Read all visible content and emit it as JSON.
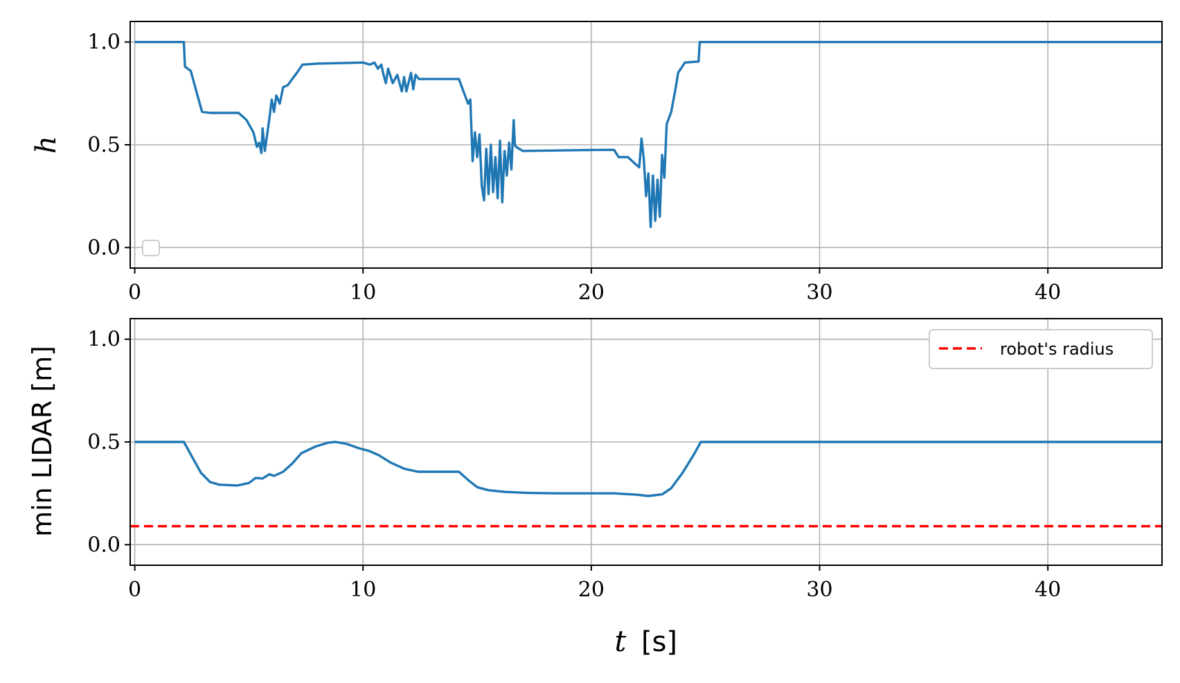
{
  "colors": {
    "series": "#1f77b4",
    "threshold": "#ff0000",
    "grid": "#b0b0b0",
    "axes": "#000000",
    "legend_border": "#cccccc"
  },
  "chart_data": [
    {
      "type": "line",
      "ylabel": "h",
      "xlim": [
        -0.2,
        45
      ],
      "ylim": [
        -0.1,
        1.1
      ],
      "xticks": [
        "0",
        "10",
        "20",
        "30",
        "40"
      ],
      "yticks": [
        "0.0",
        "0.5",
        "1.0"
      ],
      "grid": true,
      "legend": "lower-left (empty box)",
      "series": [
        {
          "points": [
            [
              0,
              1.0
            ],
            [
              2.15,
              1.0
            ],
            [
              2.2,
              0.88
            ],
            [
              2.45,
              0.86
            ],
            [
              2.75,
              0.74
            ],
            [
              2.95,
              0.66
            ],
            [
              3.3,
              0.655
            ],
            [
              4.55,
              0.655
            ],
            [
              4.9,
              0.62
            ],
            [
              5.2,
              0.56
            ],
            [
              5.35,
              0.49
            ],
            [
              5.45,
              0.51
            ],
            [
              5.55,
              0.46
            ],
            [
              5.6,
              0.58
            ],
            [
              5.7,
              0.47
            ],
            [
              5.9,
              0.63
            ],
            [
              6.0,
              0.72
            ],
            [
              6.1,
              0.66
            ],
            [
              6.2,
              0.74
            ],
            [
              6.35,
              0.7
            ],
            [
              6.5,
              0.78
            ],
            [
              6.7,
              0.79
            ],
            [
              6.9,
              0.82
            ],
            [
              7.1,
              0.85
            ],
            [
              7.35,
              0.89
            ],
            [
              8.0,
              0.895
            ],
            [
              10.0,
              0.9
            ],
            [
              10.3,
              0.89
            ],
            [
              10.5,
              0.9
            ],
            [
              10.65,
              0.87
            ],
            [
              10.8,
              0.89
            ],
            [
              10.9,
              0.84
            ],
            [
              11.0,
              0.8
            ],
            [
              11.1,
              0.87
            ],
            [
              11.3,
              0.8
            ],
            [
              11.5,
              0.84
            ],
            [
              11.7,
              0.76
            ],
            [
              11.8,
              0.83
            ],
            [
              11.9,
              0.76
            ],
            [
              12.1,
              0.85
            ],
            [
              12.2,
              0.77
            ],
            [
              12.3,
              0.84
            ],
            [
              12.45,
              0.82
            ],
            [
              13.0,
              0.82
            ],
            [
              14.2,
              0.82
            ],
            [
              14.6,
              0.7
            ],
            [
              14.7,
              0.72
            ],
            [
              14.8,
              0.42
            ],
            [
              14.9,
              0.56
            ],
            [
              15.0,
              0.44
            ],
            [
              15.1,
              0.55
            ],
            [
              15.2,
              0.3
            ],
            [
              15.3,
              0.23
            ],
            [
              15.4,
              0.48
            ],
            [
              15.5,
              0.26
            ],
            [
              15.6,
              0.5
            ],
            [
              15.7,
              0.27
            ],
            [
              15.8,
              0.44
            ],
            [
              15.9,
              0.24
            ],
            [
              16.0,
              0.52
            ],
            [
              16.1,
              0.22
            ],
            [
              16.2,
              0.47
            ],
            [
              16.3,
              0.35
            ],
            [
              16.4,
              0.51
            ],
            [
              16.5,
              0.38
            ],
            [
              16.6,
              0.62
            ],
            [
              16.65,
              0.5
            ],
            [
              16.7,
              0.49
            ],
            [
              17.0,
              0.47
            ],
            [
              20.2,
              0.475
            ],
            [
              21.0,
              0.475
            ],
            [
              21.2,
              0.44
            ],
            [
              21.6,
              0.44
            ],
            [
              22.1,
              0.39
            ],
            [
              22.2,
              0.53
            ],
            [
              22.3,
              0.43
            ],
            [
              22.4,
              0.25
            ],
            [
              22.5,
              0.36
            ],
            [
              22.6,
              0.1
            ],
            [
              22.7,
              0.35
            ],
            [
              22.8,
              0.13
            ],
            [
              22.9,
              0.33
            ],
            [
              23.0,
              0.15
            ],
            [
              23.1,
              0.45
            ],
            [
              23.2,
              0.34
            ],
            [
              23.3,
              0.6
            ],
            [
              23.5,
              0.66
            ],
            [
              23.7,
              0.78
            ],
            [
              23.8,
              0.85
            ],
            [
              24.1,
              0.9
            ],
            [
              24.7,
              0.905
            ],
            [
              24.75,
              1.0
            ],
            [
              45,
              1.0
            ]
          ]
        }
      ]
    },
    {
      "type": "line",
      "ylabel": "min LIDAR [m]",
      "xlabel_var": "t",
      "xlabel_unit": "[s]",
      "xlim": [
        -0.2,
        45
      ],
      "ylim": [
        -0.1,
        1.1
      ],
      "xticks": [
        "0",
        "10",
        "20",
        "30",
        "40"
      ],
      "yticks": [
        "0.0",
        "0.5",
        "1.0"
      ],
      "grid": true,
      "legend": "top-right",
      "series": [
        {
          "points": [
            [
              0,
              0.5
            ],
            [
              2.15,
              0.5
            ],
            [
              2.5,
              0.43
            ],
            [
              2.9,
              0.35
            ],
            [
              3.3,
              0.305
            ],
            [
              3.7,
              0.292
            ],
            [
              4.5,
              0.288
            ],
            [
              5.0,
              0.3
            ],
            [
              5.3,
              0.325
            ],
            [
              5.6,
              0.322
            ],
            [
              5.9,
              0.343
            ],
            [
              6.1,
              0.335
            ],
            [
              6.5,
              0.355
            ],
            [
              6.9,
              0.395
            ],
            [
              7.3,
              0.445
            ],
            [
              7.9,
              0.477
            ],
            [
              8.5,
              0.497
            ],
            [
              8.8,
              0.5
            ],
            [
              9.3,
              0.49
            ],
            [
              9.8,
              0.47
            ],
            [
              10.3,
              0.455
            ],
            [
              10.7,
              0.435
            ],
            [
              11.2,
              0.4
            ],
            [
              11.8,
              0.37
            ],
            [
              12.4,
              0.355
            ],
            [
              13.0,
              0.355
            ],
            [
              14.2,
              0.355
            ],
            [
              14.6,
              0.315
            ],
            [
              15.0,
              0.28
            ],
            [
              15.5,
              0.265
            ],
            [
              16.2,
              0.257
            ],
            [
              17.2,
              0.252
            ],
            [
              18.5,
              0.25
            ],
            [
              21.0,
              0.25
            ],
            [
              22.0,
              0.243
            ],
            [
              22.5,
              0.237
            ],
            [
              23.1,
              0.245
            ],
            [
              23.5,
              0.275
            ],
            [
              24.0,
              0.35
            ],
            [
              24.5,
              0.44
            ],
            [
              24.8,
              0.5
            ],
            [
              45,
              0.5
            ]
          ]
        },
        {
          "name": "robot's radius",
          "style": "dashed",
          "constant": 0.09
        }
      ]
    }
  ]
}
